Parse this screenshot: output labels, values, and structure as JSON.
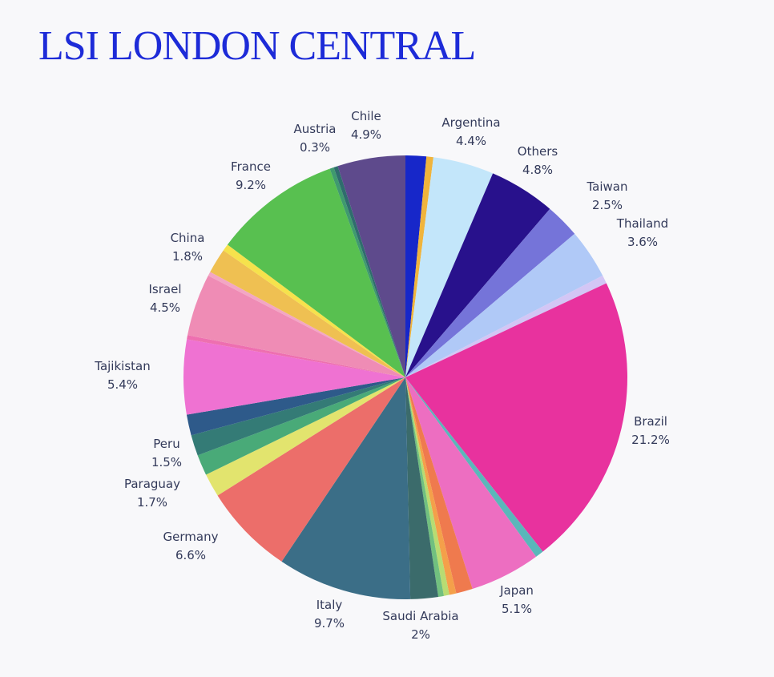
{
  "page": {
    "title": "LSI LONDON CENTRAL"
  },
  "chart_data": {
    "type": "pie",
    "title": "LSI LONDON CENTRAL",
    "slices": [
      {
        "value": 1.5,
        "color": "#1727c9"
      },
      {
        "value": 0.5,
        "color": "#f0b43c"
      },
      {
        "name": "Argentina",
        "value": 4.4,
        "label": "4.4%",
        "color": "#c3e6fa"
      },
      {
        "name": "Others",
        "value": 4.8,
        "label": "4.8%",
        "color": "#28118c"
      },
      {
        "name": "Taiwan",
        "value": 2.5,
        "label": "2.5%",
        "color": "#7574d9"
      },
      {
        "name": "Thailand",
        "value": 3.6,
        "label": "3.6%",
        "color": "#b0c9f7"
      },
      {
        "value": 0.6,
        "color": "#d3c6f5"
      },
      {
        "name": "Brazil",
        "value": 21.2,
        "label": "21.2%",
        "color": "#e8329e"
      },
      {
        "value": 0.6,
        "color": "#5ab7ba"
      },
      {
        "name": "Japan",
        "value": 5.1,
        "label": "5.1%",
        "color": "#ed6ec1"
      },
      {
        "value": 1.2,
        "color": "#ef7a4e"
      },
      {
        "value": 0.5,
        "color": "#f4a04a"
      },
      {
        "value": 0.4,
        "color": "#b8dc72"
      },
      {
        "value": 0.4,
        "color": "#71c07f"
      },
      {
        "name": "Saudi Arabia",
        "value": 2,
        "label": "2%",
        "color": "#3b6b6b"
      },
      {
        "name": "Italy",
        "value": 9.7,
        "label": "9.7%",
        "color": "#3b6e87"
      },
      {
        "name": "Germany",
        "value": 6.6,
        "label": "6.6%",
        "color": "#ec6e6a"
      },
      {
        "name": "Paraguay",
        "value": 1.7,
        "label": "1.7%",
        "color": "#e2e46e"
      },
      {
        "name": "Peru",
        "value": 1.5,
        "label": "1.5%",
        "color": "#49aa78"
      },
      {
        "value": 1.5,
        "color": "#347b76"
      },
      {
        "value": 1.5,
        "color": "#2e5a8a"
      },
      {
        "name": "Tajikistan",
        "value": 5.4,
        "label": "5.4%",
        "color": "#ef72d2"
      },
      {
        "value": 0.3,
        "color": "#ee6fb0"
      },
      {
        "name": "Israel",
        "value": 4.5,
        "label": "4.5%",
        "color": "#ef8cb5"
      },
      {
        "value": 0.3,
        "color": "#f3a6c4"
      },
      {
        "name": "China",
        "value": 1.8,
        "label": "1.8%",
        "color": "#efc052"
      },
      {
        "value": 0.5,
        "color": "#f6e24c"
      },
      {
        "name": "France",
        "value": 9.2,
        "label": "9.2%",
        "color": "#58c050"
      },
      {
        "value": 0.3,
        "color": "#3f9a6e"
      },
      {
        "name": "Austria",
        "value": 0.3,
        "label": "0.3%",
        "color": "#2f6d6d"
      },
      {
        "name": "Chile",
        "value": 4.9,
        "label": "4.9%",
        "color": "#5e4a8c"
      }
    ]
  }
}
